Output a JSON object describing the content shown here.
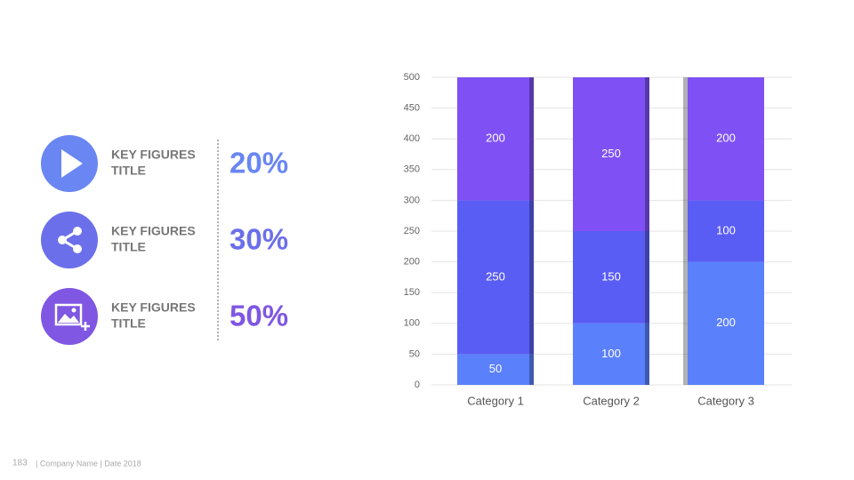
{
  "key_figures": [
    {
      "title": [
        "KEY FIGURES",
        "TITLE"
      ],
      "value": "20%",
      "color": "#6a86f2"
    },
    {
      "title": [
        "KEY FIGURES",
        "TITLE"
      ],
      "value": "30%",
      "color": "#6b6fea"
    },
    {
      "title": [
        "KEY FIGURES",
        "TITLE"
      ],
      "value": "50%",
      "color": "#7f57e2"
    }
  ],
  "footer": {
    "page": "183",
    "text": "| Company Name | Date 2018"
  },
  "chart_data": {
    "type": "stacked-bar",
    "categories": [
      "Category 1",
      "Category 2",
      "Category 3"
    ],
    "series": [
      {
        "color": "#5b80fb",
        "values": [
          50,
          100,
          200
        ]
      },
      {
        "color": "#5a5df4",
        "values": [
          250,
          150,
          100
        ]
      },
      {
        "color": "#7f51f4",
        "values": [
          200,
          250,
          200
        ]
      }
    ],
    "ylim": [
      0,
      500
    ],
    "yticks": [
      0,
      50,
      100,
      150,
      200,
      250,
      300,
      350,
      400,
      450,
      500
    ],
    "grid": true
  }
}
